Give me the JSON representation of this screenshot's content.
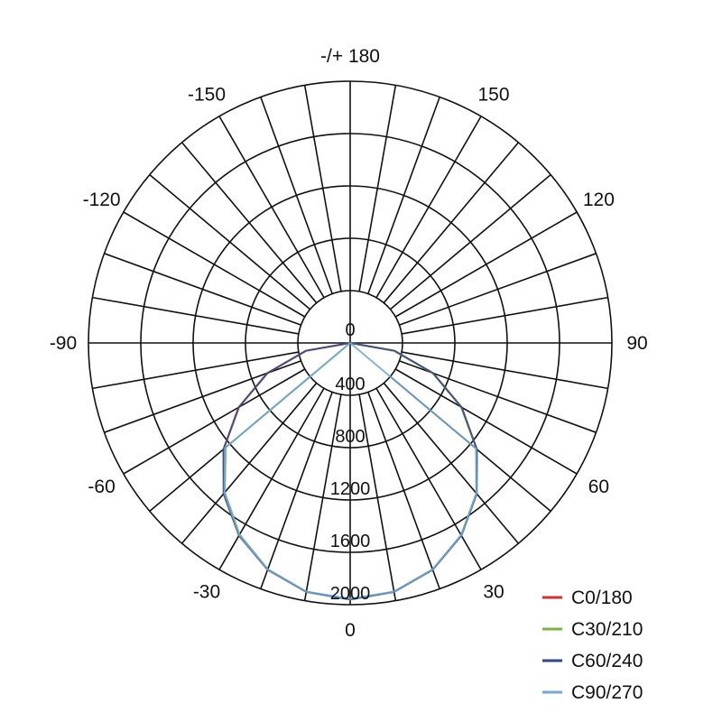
{
  "chart_data": {
    "type": "polar",
    "title": "",
    "radial_unit": "",
    "radial_ticks": [
      0,
      400,
      800,
      1200,
      1600,
      2000
    ],
    "radial_range": [
      0,
      2000
    ],
    "angle_labels": [
      {
        "angle": 180,
        "text": "-/+ 180"
      },
      {
        "angle": 150,
        "text": "150"
      },
      {
        "angle": 120,
        "text": "120"
      },
      {
        "angle": 90,
        "text": "90"
      },
      {
        "angle": 60,
        "text": "60"
      },
      {
        "angle": 30,
        "text": "30"
      },
      {
        "angle": 0,
        "text": "0"
      },
      {
        "angle": -30,
        "text": "-30"
      },
      {
        "angle": -60,
        "text": "-60"
      },
      {
        "angle": -90,
        "text": "-90"
      },
      {
        "angle": -120,
        "text": "-120"
      },
      {
        "angle": -150,
        "text": "-150"
      }
    ],
    "angle_grid_step": 10,
    "grid": true,
    "legend_position": "bottom-right",
    "angles": [
      -90,
      -80,
      -70,
      -60,
      -50,
      -40,
      -30,
      -20,
      -10,
      0,
      10,
      20,
      30,
      40,
      50,
      60,
      70,
      80,
      90
    ],
    "series": [
      {
        "name": "C0/180",
        "color": "#d32f2f",
        "values": [
          0,
          340,
          670,
          980,
          1260,
          1501,
          1697,
          1842,
          1930,
          1960,
          1930,
          1842,
          1697,
          1501,
          1260,
          980,
          670,
          340,
          0
        ]
      },
      {
        "name": "C30/210",
        "color": "#7cb342",
        "values": [
          0,
          0,
          0,
          0,
          1240,
          1490,
          1690,
          1840,
          1930,
          1960,
          1930,
          1842,
          1697,
          1501,
          1260,
          980,
          670,
          340,
          0
        ]
      },
      {
        "name": "C60/240",
        "color": "#2e4a8a",
        "values": [
          0,
          345,
          675,
          985,
          1265,
          1505,
          1700,
          1845,
          1932,
          1960,
          1932,
          1845,
          1700,
          1505,
          1265,
          985,
          675,
          345,
          0
        ]
      },
      {
        "name": "C90/270",
        "color": "#6fa8dc",
        "values": [
          0,
          0,
          0,
          0,
          1250,
          1495,
          1695,
          1842,
          1930,
          1955,
          1930,
          1842,
          1697,
          1501,
          1255,
          0,
          0,
          0,
          0
        ]
      }
    ]
  }
}
